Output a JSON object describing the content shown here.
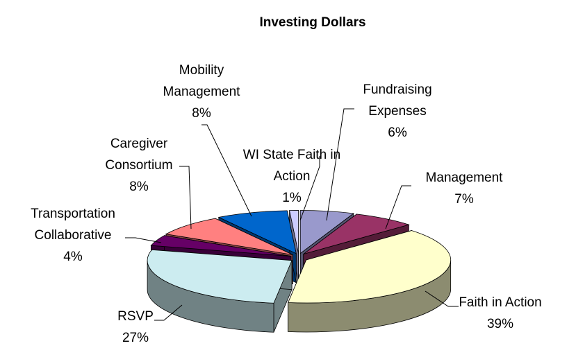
{
  "chart_data": {
    "type": "pie",
    "title": "Investing Dollars",
    "categories": [
      "Fundraising Expenses",
      "Management",
      "Faith in Action",
      "RSVP",
      "Transportation Collaborative",
      "Caregiver Consortium",
      "Mobility Management",
      "WI State Faith in Action"
    ],
    "values": [
      6,
      7,
      39,
      27,
      4,
      8,
      8,
      1
    ],
    "value_labels": [
      "6%",
      "7%",
      "39%",
      "27%",
      "4%",
      "8%",
      "8%",
      "1%"
    ],
    "colors": [
      "#9999cc",
      "#993366",
      "#ffffcc",
      "#ccecf0",
      "#660066",
      "#ff8080",
      "#0066cc",
      "#ccccff"
    ]
  }
}
